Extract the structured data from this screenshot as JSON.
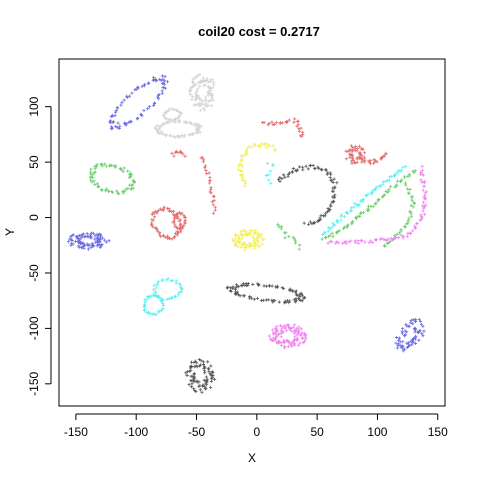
{
  "chart_data": {
    "type": "scatter",
    "title": "coil20 cost = 0.2717",
    "xlabel": "X",
    "ylabel": "Y",
    "xlim": [
      -164,
      156
    ],
    "ylim": [
      -170,
      143
    ],
    "xticks": [
      -150,
      -100,
      -50,
      0,
      50,
      100,
      150
    ],
    "yticks": [
      -150,
      -100,
      -50,
      0,
      50,
      100
    ],
    "xtick_labels": [
      "-150",
      "-100",
      "-50",
      "0",
      "50",
      "100",
      "150"
    ],
    "ytick_labels": [
      "-150",
      "-100",
      "-50",
      "0",
      "50",
      "100"
    ],
    "marker": "+",
    "grid": false,
    "legend": "none",
    "series": [
      {
        "color": "#6B6BE0",
        "shape": "ellipse",
        "points": [
          [
            -102,
            103
          ],
          [
            -85,
            120
          ],
          [
            -112,
            88
          ],
          [
            -93,
            110
          ]
        ],
        "cx": -98,
        "cy": 104,
        "rx": 10,
        "ry": 30,
        "rot": -45,
        "n": 80
      },
      {
        "color": "#D3D3D3",
        "shape": "blob",
        "cx": -45,
        "cy": 113,
        "rx": 11,
        "ry": 17,
        "rot": 0,
        "n": 90
      },
      {
        "color": "#D3D3D3",
        "shape": "ellipse",
        "cx": -65,
        "cy": 80,
        "rx": 18,
        "ry": 7,
        "rot": 0,
        "n": 70
      },
      {
        "color": "#D3D3D3",
        "shape": "ellipse",
        "cx": -70,
        "cy": 93,
        "rx": 7,
        "ry": 5,
        "rot": 0,
        "n": 25
      },
      {
        "color": "#6ACD6A",
        "shape": "ellipse",
        "cx": -120,
        "cy": 35,
        "rx": 18,
        "ry": 12,
        "rot": -20,
        "n": 70
      },
      {
        "color": "#6B6BE0",
        "shape": "blob",
        "cx": -140,
        "cy": -21,
        "rx": 18,
        "ry": 8,
        "rot": 0,
        "n": 90
      },
      {
        "color": "#E06B6B",
        "shape": "ellipse",
        "cx": -75,
        "cy": -5,
        "rx": 11,
        "ry": 14,
        "rot": 30,
        "n": 60
      },
      {
        "color": "#E06B6B",
        "shape": "ellipse",
        "cx": -64,
        "cy": -3,
        "rx": 5,
        "ry": 7,
        "rot": 0,
        "n": 25
      },
      {
        "color": "#E06B6B",
        "shape": "curve",
        "points": [
          [
            -70,
            56
          ],
          [
            -65,
            60
          ],
          [
            -60,
            56
          ]
        ],
        "n": 10
      },
      {
        "color": "#E06B6B",
        "shape": "curve",
        "points": [
          [
            -45,
            55
          ],
          [
            -40,
            40
          ],
          [
            -38,
            25
          ],
          [
            -35,
            5
          ]
        ],
        "n": 25
      },
      {
        "color": "#E06B6B",
        "shape": "curve",
        "points": [
          [
            5,
            85
          ],
          [
            15,
            85
          ],
          [
            25,
            86
          ],
          [
            32,
            88
          ],
          [
            36,
            80
          ],
          [
            38,
            72
          ]
        ],
        "n": 28
      },
      {
        "color": "#E06B6B",
        "shape": "blob",
        "cx": 82,
        "cy": 57,
        "rx": 9,
        "ry": 9,
        "rot": 0,
        "n": 45
      },
      {
        "color": "#E06B6B",
        "shape": "curve",
        "points": [
          [
            88,
            52
          ],
          [
            95,
            50
          ],
          [
            102,
            52
          ],
          [
            108,
            58
          ]
        ],
        "n": 22
      },
      {
        "color": "#F0F05A",
        "shape": "curve",
        "points": [
          [
            15,
            62
          ],
          [
            5,
            66
          ],
          [
            -5,
            64
          ],
          [
            -12,
            55
          ],
          [
            -14,
            45
          ],
          [
            -12,
            35
          ],
          [
            -10,
            30
          ]
        ],
        "n": 45
      },
      {
        "color": "#F0F05A",
        "shape": "blob",
        "cx": -7,
        "cy": -20,
        "rx": 14,
        "ry": 10,
        "rot": 0,
        "n": 80
      },
      {
        "color": "#5AF0F0",
        "shape": "curve",
        "points": [
          [
            10,
            48
          ],
          [
            15,
            48
          ],
          [
            8,
            35
          ],
          [
            12,
            32
          ]
        ],
        "n": 8
      },
      {
        "color": "#555555",
        "shape": "curve",
        "points": [
          [
            18,
            33
          ],
          [
            30,
            43
          ],
          [
            45,
            46
          ],
          [
            58,
            42
          ],
          [
            65,
            30
          ],
          [
            62,
            10
          ],
          [
            50,
            -5
          ],
          [
            40,
            -5
          ]
        ],
        "n": 75
      },
      {
        "color": "#5AF0F0",
        "shape": "curve",
        "points": [
          [
            55,
            -15
          ],
          [
            70,
            0
          ],
          [
            90,
            18
          ],
          [
            110,
            35
          ],
          [
            122,
            45
          ]
        ],
        "n": 60
      },
      {
        "color": "#6ACD6A",
        "shape": "curve",
        "points": [
          [
            55,
            -20
          ],
          [
            75,
            -8
          ],
          [
            95,
            10
          ],
          [
            115,
            30
          ],
          [
            132,
            42
          ]
        ],
        "n": 60
      },
      {
        "color": "#6ACD6A",
        "shape": "curve",
        "points": [
          [
            124,
            30
          ],
          [
            130,
            15
          ],
          [
            127,
            0
          ],
          [
            118,
            -15
          ],
          [
            105,
            -25
          ]
        ],
        "n": 35
      },
      {
        "color": "#EE82EE",
        "shape": "curve",
        "points": [
          [
            60,
            -22
          ],
          [
            85,
            -22
          ],
          [
            110,
            -20
          ],
          [
            128,
            -15
          ],
          [
            137,
            0
          ],
          [
            140,
            20
          ],
          [
            136,
            45
          ]
        ],
        "n": 80
      },
      {
        "color": "#6ACD6A",
        "shape": "curve",
        "points": [
          [
            18,
            -5
          ],
          [
            25,
            -18
          ],
          [
            32,
            -20
          ],
          [
            35,
            -28
          ]
        ],
        "n": 14
      },
      {
        "color": "#555555",
        "shape": "ellipse",
        "cx": 8,
        "cy": -68,
        "rx": 30,
        "ry": 7,
        "rot": -8,
        "n": 90
      },
      {
        "color": "#5AF0F0",
        "shape": "ellipse",
        "cx": -74,
        "cy": -65,
        "rx": 11,
        "ry": 9,
        "rot": 0,
        "n": 35
      },
      {
        "color": "#5AF0F0",
        "shape": "ellipse",
        "cx": -86,
        "cy": -79,
        "rx": 8,
        "ry": 9,
        "rot": 0,
        "n": 35
      },
      {
        "color": "#EE82EE",
        "shape": "blob",
        "cx": 26,
        "cy": -107,
        "rx": 16,
        "ry": 11,
        "rot": 0,
        "n": 100
      },
      {
        "color": "#6B6BE0",
        "shape": "blob",
        "cx": 127,
        "cy": -107,
        "rx": 10,
        "ry": 17,
        "rot": -30,
        "n": 70
      },
      {
        "color": "#555555",
        "shape": "blob",
        "cx": -47,
        "cy": -143,
        "rx": 13,
        "ry": 15,
        "rot": 0,
        "n": 80
      }
    ]
  }
}
